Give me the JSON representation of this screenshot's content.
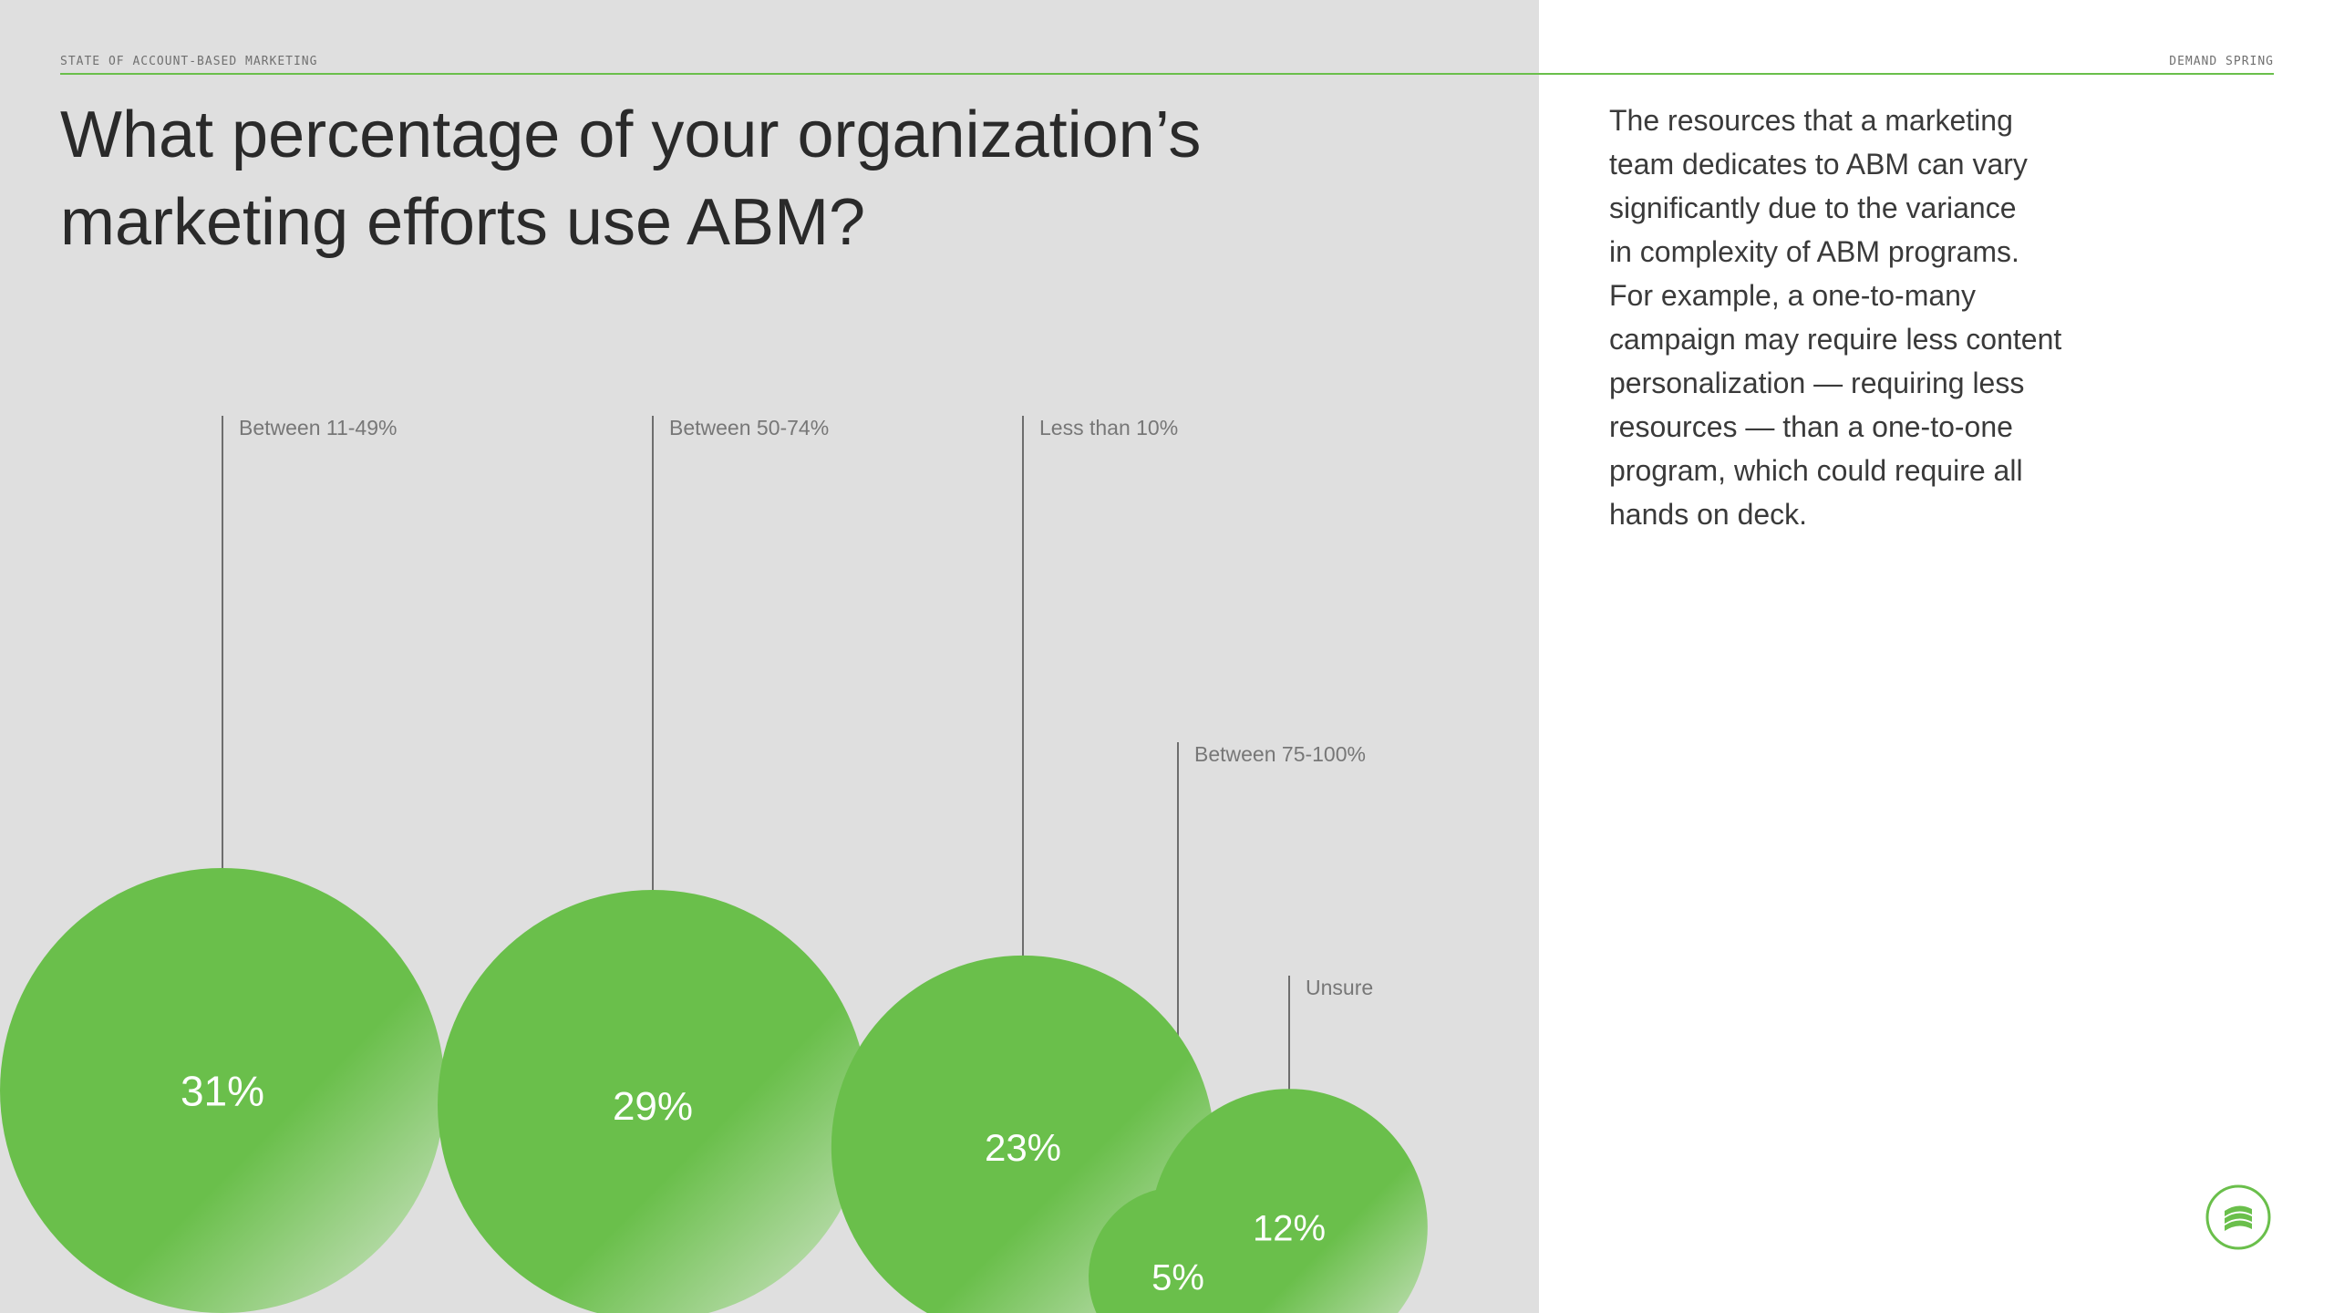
{
  "header": {
    "left_label": "STATE OF ACCOUNT-BASED MARKETING",
    "right_label": "DEMAND SPRING"
  },
  "question": {
    "lines": [
      "What percentage of your organization’s",
      "marketing efforts use ABM?"
    ]
  },
  "body": {
    "lines": [
      "The resources that a marketing",
      "team dedicates to ABM can vary",
      "significantly due to the variance",
      "in complexity of ABM programs.",
      "For example, a one-to-many",
      "campaign may require less content",
      "personalization — requiring less",
      "resources — than a one-to-one",
      "program, which could require all",
      "hands on deck."
    ]
  },
  "colors": {
    "accent": "#6abf4b",
    "panel_bg": "#dfdfdf",
    "text": "#2a2a2a",
    "label_text": "#777777",
    "leader_line": "#6e6e6e"
  },
  "logo": {
    "icon": "demand-spring-logo-icon"
  },
  "chart_data": {
    "type": "bubble",
    "title": "",
    "value_unit": "%",
    "categories": [
      "Between 11-49%",
      "Between 50-74%",
      "Less than 10%",
      "Between 75-100%",
      "Unsure"
    ],
    "values": [
      31,
      29,
      23,
      5,
      12
    ],
    "value_labels": [
      "31%",
      "29%",
      "23%",
      "5%",
      "12%"
    ]
  }
}
